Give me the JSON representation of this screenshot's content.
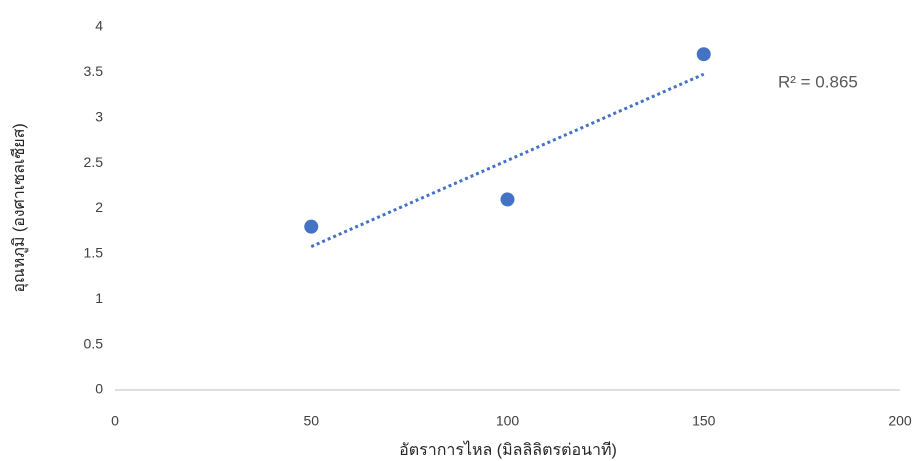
{
  "chart_data": {
    "type": "scatter",
    "x_label": "อัตราการไหล (มิลลิลิตรต่อนาที)",
    "y_label": "อุณหภูมิ (องศาเซลเซียส)",
    "x": [
      50,
      100,
      150
    ],
    "values": [
      1.8,
      2.1,
      3.7
    ],
    "color": "#4472c4",
    "xlim": [
      0,
      200
    ],
    "xticks": [
      0,
      50,
      100,
      150,
      200
    ],
    "ylim": [
      0,
      4
    ],
    "yticks": [
      0,
      0.5,
      1,
      1.5,
      2,
      2.5,
      3,
      3.5,
      4
    ],
    "trendline": {
      "x": [
        50,
        150
      ],
      "values": [
        1.58,
        3.48
      ],
      "color": "#4472c4",
      "label": "R² = 0.865"
    },
    "grid": false
  }
}
